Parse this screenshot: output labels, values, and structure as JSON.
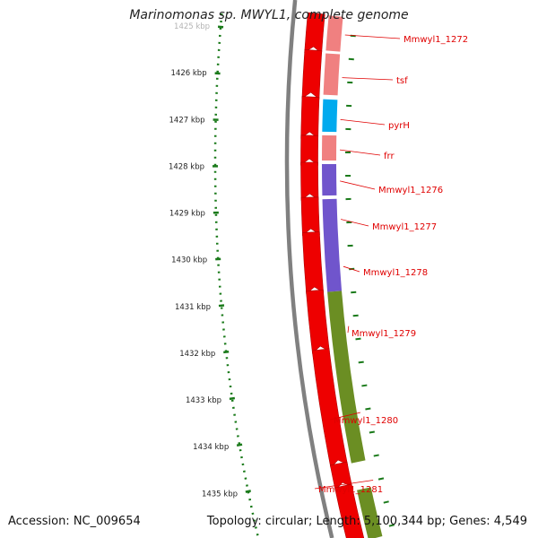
{
  "map": {
    "title": "Marinomonas sp. MWYL1, complete genome",
    "accession_label": "Accession: NC_009654",
    "topology_label": "Topology: circular; Length: 5,100,344 bp; Genes: 4,549"
  },
  "scale": {
    "unit": "kbp",
    "ticks": [
      "1425 kbp",
      "1426 kbp",
      "1427 kbp",
      "1428 kbp",
      "1429 kbp",
      "1430 kbp",
      "1431 kbp",
      "1432 kbp",
      "1433 kbp",
      "1434 kbp",
      "1435 kbp"
    ]
  },
  "colors": {
    "backbone": "#808080",
    "ruler": "#1a7a1a",
    "label": "#e00000",
    "cds_strand": "#ee0000",
    "gene_pink": "#f08080",
    "gene_cyan": "#00aaee",
    "gene_purple": "#7055cc",
    "gene_olive": "#6b8e23"
  },
  "genes": [
    {
      "name": "Mmwyl1_1272",
      "color": "pink"
    },
    {
      "name": "tsf",
      "color": "pink"
    },
    {
      "name": "pyrH",
      "color": "cyan"
    },
    {
      "name": "frr",
      "color": "pink"
    },
    {
      "name": "Mmwyl1_1276",
      "color": "purple"
    },
    {
      "name": "Mmwyl1_1277",
      "color": "purple"
    },
    {
      "name": "Mmwyl1_1278",
      "color": "purple"
    },
    {
      "name": "Mmwyl1_1279",
      "color": "olive"
    },
    {
      "name": "Mmwyl1_1280",
      "color": "olive"
    },
    {
      "name": "Mmwyl1_1281",
      "color": "olive"
    }
  ]
}
